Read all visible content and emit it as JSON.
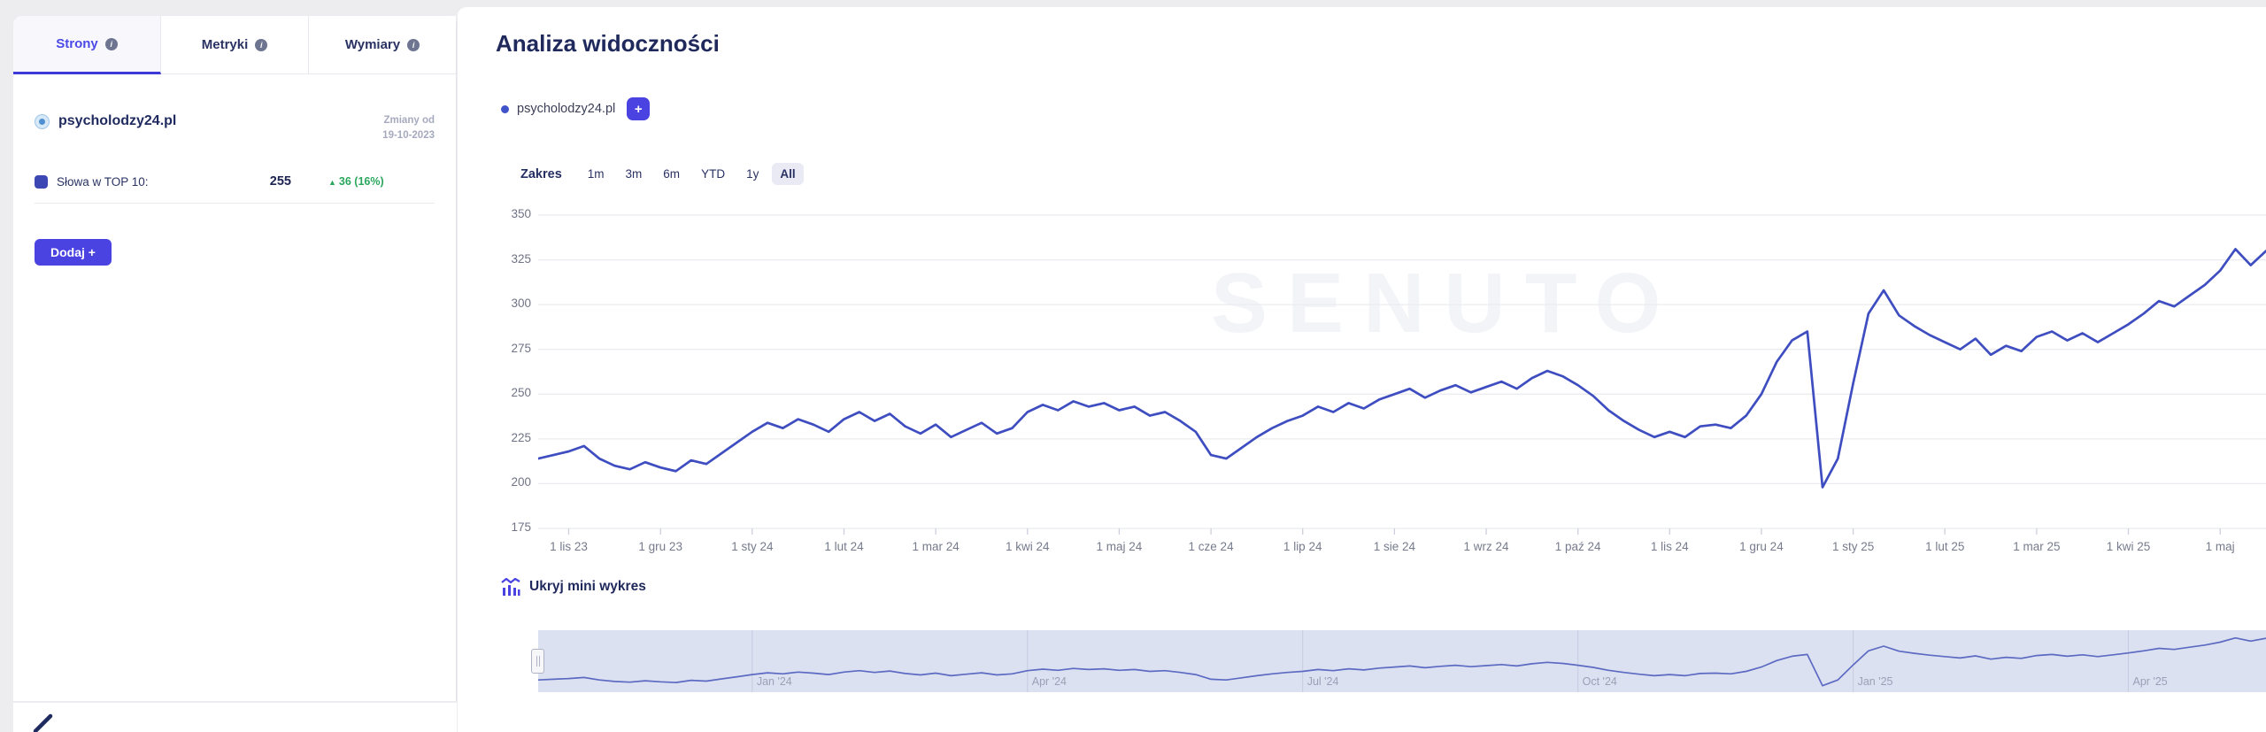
{
  "sidebar": {
    "tabs": [
      {
        "label": "Strony",
        "active": true
      },
      {
        "label": "Metryki",
        "active": false
      },
      {
        "label": "Wymiary",
        "active": false
      }
    ],
    "info_icon": "i",
    "domain": {
      "name": "psycholodzy24.pl"
    },
    "changes": {
      "line1": "Zmiany od",
      "line2": "19-10-2023"
    },
    "metric": {
      "label": "Słowa w TOP 10:",
      "value": "255",
      "delta_arrow": "▲",
      "delta": "36 (16%)"
    },
    "add_button_label": "Dodaj +"
  },
  "main": {
    "title": "Analiza widoczności",
    "legend": {
      "domain": "psycholodzy24.pl",
      "add_button_label": "+"
    },
    "range": {
      "label": "Zakres",
      "options": [
        "1m",
        "3m",
        "6m",
        "YTD",
        "1y",
        "All"
      ],
      "selected": "All"
    },
    "watermark": "SENUTO",
    "mini_toggle_label": "Ukryj mini wykres"
  },
  "chart_data": {
    "type": "line",
    "title": "Analiza widoczności",
    "ylabel": "",
    "xlabel": "",
    "ylim": [
      175,
      350
    ],
    "yticks": [
      175,
      200,
      225,
      250,
      275,
      300,
      325,
      350
    ],
    "grid": true,
    "legend_position": "top-left",
    "line_color": "#3e4dc0",
    "series": [
      {
        "name": "psycholodzy24.pl",
        "values": [
          214,
          216,
          218,
          221,
          214,
          210,
          208,
          212,
          209,
          207,
          213,
          211,
          217,
          223,
          229,
          234,
          231,
          236,
          233,
          229,
          236,
          240,
          235,
          239,
          232,
          228,
          233,
          226,
          230,
          234,
          228,
          231,
          240,
          244,
          241,
          246,
          243,
          245,
          241,
          243,
          238,
          240,
          235,
          229,
          216,
          214,
          220,
          226,
          231,
          235,
          238,
          243,
          240,
          245,
          242,
          247,
          250,
          253,
          248,
          252,
          255,
          251,
          254,
          257,
          253,
          259,
          263,
          260,
          255,
          249,
          241,
          235,
          230,
          226,
          229,
          226,
          232,
          233,
          231,
          238,
          250,
          268,
          280,
          285,
          198,
          214,
          256,
          295,
          308,
          294,
          288,
          283,
          279,
          275,
          281,
          272,
          277,
          274,
          282,
          285,
          280,
          284,
          279,
          284,
          289,
          295,
          302,
          299,
          305,
          311,
          319,
          331,
          322,
          330
        ]
      }
    ],
    "xticks": [
      {
        "index": 2,
        "label": "1 lis 23"
      },
      {
        "index": 8,
        "label": "1 gru 23"
      },
      {
        "index": 14,
        "label": "1 sty 24"
      },
      {
        "index": 20,
        "label": "1 lut 24"
      },
      {
        "index": 26,
        "label": "1 mar 24"
      },
      {
        "index": 32,
        "label": "1 kwi 24"
      },
      {
        "index": 38,
        "label": "1 maj 24"
      },
      {
        "index": 44,
        "label": "1 cze 24"
      },
      {
        "index": 50,
        "label": "1 lip 24"
      },
      {
        "index": 56,
        "label": "1 sie 24"
      },
      {
        "index": 62,
        "label": "1 wrz 24"
      },
      {
        "index": 68,
        "label": "1 paź 24"
      },
      {
        "index": 74,
        "label": "1 lis 24"
      },
      {
        "index": 80,
        "label": "1 gru 24"
      },
      {
        "index": 86,
        "label": "1 sty 25"
      },
      {
        "index": 92,
        "label": "1 lut 25"
      },
      {
        "index": 98,
        "label": "1 mar 25"
      },
      {
        "index": 104,
        "label": "1 kwi 25"
      },
      {
        "index": 110,
        "label": "1 maj"
      }
    ],
    "navigator": {
      "background": "#dce1f2",
      "line_color": "#5c6ac2",
      "labels": [
        {
          "index": 14,
          "label": "Jan '24"
        },
        {
          "index": 32,
          "label": "Apr '24"
        },
        {
          "index": 50,
          "label": "Jul '24"
        },
        {
          "index": 68,
          "label": "Oct '24"
        },
        {
          "index": 86,
          "label": "Jan '25"
        },
        {
          "index": 104,
          "label": "Apr '25"
        }
      ]
    }
  }
}
